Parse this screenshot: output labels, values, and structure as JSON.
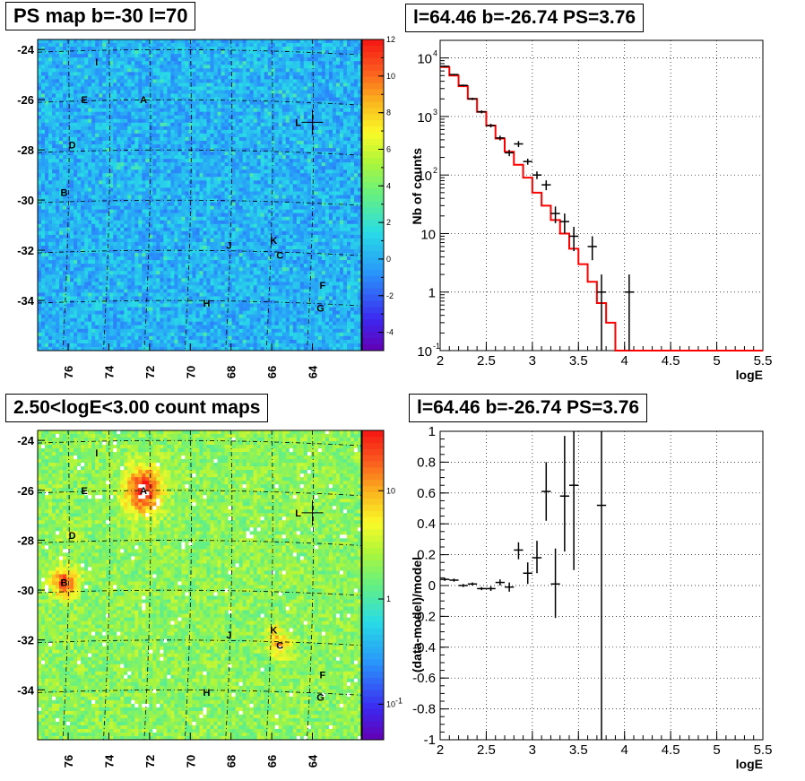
{
  "panels": {
    "tl_title": "PS map b=-30 l=70",
    "tr_title": "l=64.46 b=-26.74 PS=3.76",
    "bl_title": "2.50<logE<3.00 count maps",
    "br_title": "l=64.46 b=-26.74 PS=3.76"
  },
  "colors": {
    "model_line": "#ff0000",
    "data_points": "#000000",
    "grid": "#000000"
  },
  "map_axes": {
    "b_ticks": [
      "-24",
      "-26",
      "-28",
      "-30",
      "-32",
      "-34"
    ],
    "l_ticks": [
      "76",
      "74",
      "72",
      "70",
      "68",
      "66",
      "64"
    ]
  },
  "sources": [
    {
      "label": "I",
      "l": 74.6,
      "b": -24.5
    },
    {
      "label": "E",
      "l": 75.2,
      "b": -26.0
    },
    {
      "label": "A",
      "l": 72.3,
      "b": -26.0
    },
    {
      "label": "L",
      "l": 64.7,
      "b": -26.9
    },
    {
      "label": "D",
      "l": 75.8,
      "b": -27.8
    },
    {
      "label": "B",
      "l": 76.2,
      "b": -29.7
    },
    {
      "label": "J",
      "l": 68.1,
      "b": -31.8
    },
    {
      "label": "K",
      "l": 65.9,
      "b": -31.6
    },
    {
      "label": "C",
      "l": 65.6,
      "b": -32.2
    },
    {
      "label": "F",
      "l": 63.5,
      "b": -33.4
    },
    {
      "label": "H",
      "l": 69.2,
      "b": -34.1
    },
    {
      "label": "G",
      "l": 63.6,
      "b": -34.3
    }
  ],
  "ps_colorbar": {
    "ticks": [
      "12",
      "10",
      "8",
      "6",
      "4",
      "2",
      "0",
      "-2",
      "-4"
    ],
    "range": [
      -5,
      12
    ]
  },
  "count_colorbar": {
    "ticks": [
      "10",
      "1",
      "10",
      "-1"
    ]
  },
  "chart_data": [
    {
      "type": "line",
      "name": "spectrum",
      "title": "l=64.46 b=-26.74 PS=3.76",
      "xlabel": "logE",
      "ylabel": "Nb of counts",
      "xlim": [
        2,
        5.5
      ],
      "ylim": [
        0.1,
        20000
      ],
      "yscale": "log",
      "grid": true,
      "x_ticks": [
        "2",
        "2.5",
        "3",
        "3.5",
        "4",
        "4.5",
        "5",
        "5.5"
      ],
      "y_ticks": [
        {
          "base": "10",
          "exp": "-1"
        },
        {
          "base": "1",
          "exp": ""
        },
        {
          "base": "10",
          "exp": ""
        },
        {
          "base": "10",
          "exp": "2"
        },
        {
          "base": "10",
          "exp": "3"
        },
        {
          "base": "10",
          "exp": "4"
        }
      ],
      "series": [
        {
          "style": "step",
          "bins": [
            2,
            2.1,
            2.2,
            2.3,
            2.4,
            2.5,
            2.6,
            2.7,
            2.8,
            2.9,
            3.0,
            3.1,
            3.2,
            3.3,
            3.4,
            3.5,
            3.6,
            3.7,
            3.8,
            3.9,
            4.0,
            4.1,
            4.2,
            4.3,
            4.4,
            4.5,
            4.6,
            4.7,
            4.8,
            4.9,
            5.0,
            5.1,
            5.2,
            5.3,
            5.4,
            5.5
          ],
          "values": [
            7000,
            5000,
            3300,
            2000,
            1200,
            700,
            420,
            250,
            150,
            90,
            50,
            30,
            17,
            10,
            5.5,
            3,
            1.5,
            0.65,
            0.3,
            0.1,
            0.1,
            0.1,
            0.1,
            0.1,
            0.1,
            0.1,
            0.1,
            0.1,
            0.1,
            0.1,
            0.1,
            0.1,
            0.1,
            0.1,
            0.1
          ]
        },
        {
          "style": "points",
          "x": [
            2.05,
            2.15,
            2.25,
            2.35,
            2.45,
            2.55,
            2.65,
            2.75,
            2.85,
            2.95,
            3.05,
            3.15,
            3.25,
            3.35,
            3.45,
            3.65,
            3.75,
            4.05
          ],
          "y": [
            7200,
            5200,
            3400,
            2000,
            1200,
            700,
            430,
            240,
            340,
            170,
            100,
            68,
            22,
            16,
            9,
            6,
            1,
            1
          ],
          "ylo": [
            7000,
            5050,
            3280,
            1910,
            1130,
            650,
            390,
            210,
            300,
            150,
            85,
            55,
            15,
            10,
            5,
            3.5,
            0.1,
            0.1
          ],
          "yhi": [
            7400,
            5350,
            3520,
            2090,
            1270,
            750,
            470,
            270,
            380,
            190,
            115,
            81,
            29,
            22,
            13,
            9,
            2,
            2
          ]
        }
      ]
    },
    {
      "type": "scatter",
      "name": "residuals",
      "title": "l=64.46 b=-26.74 PS=3.76",
      "xlabel": "logE",
      "ylabel": "(data-model)/model",
      "xlim": [
        2,
        5.5
      ],
      "ylim": [
        -1,
        1
      ],
      "grid": true,
      "x_ticks": [
        "2",
        "2.5",
        "3",
        "3.5",
        "4",
        "4.5",
        "5",
        "5.5"
      ],
      "y_ticks": [
        "-1",
        "-0.8",
        "-0.6",
        "-0.4",
        "-0.2",
        "0",
        "0.2",
        "0.4",
        "0.6",
        "0.8",
        "1"
      ],
      "series": [
        {
          "x": [
            2.05,
            2.15,
            2.25,
            2.35,
            2.45,
            2.55,
            2.65,
            2.75,
            2.85,
            2.95,
            3.05,
            3.15,
            3.25,
            3.35,
            3.45,
            3.75
          ],
          "y": [
            0.04,
            0.035,
            0.0,
            0.01,
            -0.02,
            -0.02,
            0.02,
            -0.01,
            0.23,
            0.08,
            0.18,
            0.61,
            0.01,
            0.58,
            0.65,
            0.52
          ],
          "ylo": [
            0.03,
            0.025,
            -0.01,
            0.0,
            -0.03,
            -0.035,
            0.0,
            -0.04,
            0.17,
            0.01,
            0.08,
            0.42,
            -0.21,
            0.22,
            0.1,
            -1.0
          ],
          "yhi": [
            0.05,
            0.045,
            0.01,
            0.02,
            -0.01,
            -0.005,
            0.04,
            0.02,
            0.28,
            0.15,
            0.29,
            0.8,
            0.24,
            0.97,
            1.0,
            1.0
          ]
        }
      ]
    }
  ]
}
